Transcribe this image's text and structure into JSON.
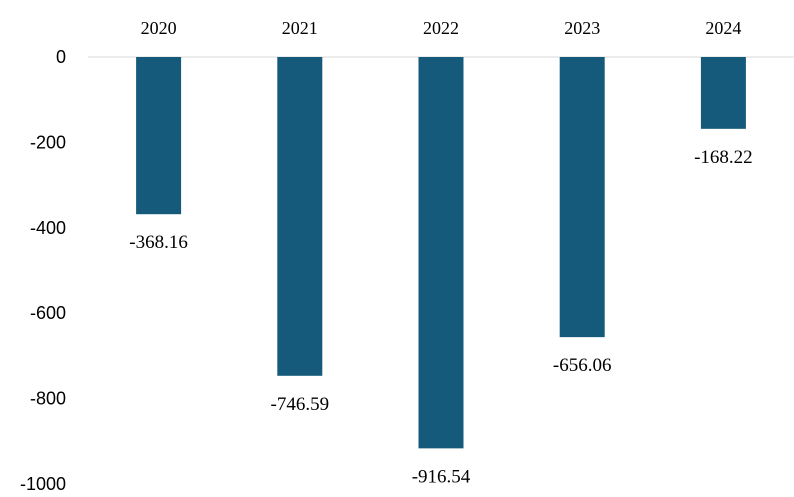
{
  "chart_data": {
    "type": "bar",
    "categories": [
      "2020",
      "2021",
      "2022",
      "2023",
      "2024"
    ],
    "values": [
      -368.16,
      -746.59,
      -916.54,
      -656.06,
      -168.22
    ],
    "data_labels": [
      "-368.16",
      "-746.59",
      "-916.54",
      "-656.06",
      "-168.22"
    ],
    "ylim": [
      -1000,
      0
    ],
    "yticks": [
      0,
      -200,
      -400,
      -600,
      -800,
      -1000
    ],
    "ytick_labels": [
      "0",
      "-200",
      "-400",
      "-600",
      "-800",
      "-1000"
    ],
    "x_axis_position": "top",
    "grid": false,
    "legend": "none",
    "bar_color": "#155a7a",
    "axis_line_color": "#d9d9d9"
  }
}
